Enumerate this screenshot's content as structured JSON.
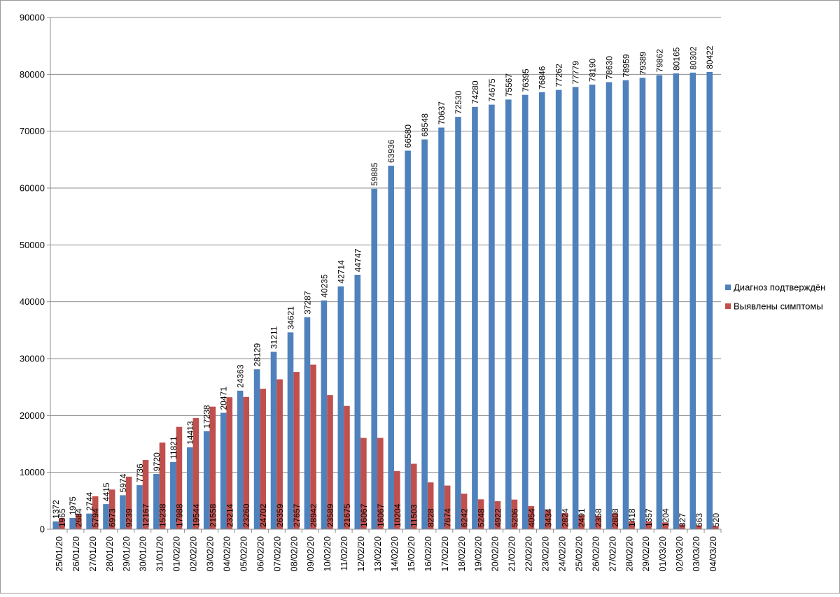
{
  "chart_data": {
    "type": "bar",
    "categories": [
      "25/01/20",
      "26/01/20",
      "27/01/20",
      "28/01/20",
      "29/01/20",
      "30/01/20",
      "31/01/20",
      "01/02/20",
      "02/02/20",
      "03/02/20",
      "04/02/20",
      "05/02/20",
      "06/02/20",
      "07/02/20",
      "08/02/20",
      "09/02/20",
      "10/02/20",
      "11/02/20",
      "12/02/20",
      "13/02/20",
      "14/02/20",
      "15/02/20",
      "16/02/20",
      "17/02/20",
      "18/02/20",
      "19/02/20",
      "20/02/20",
      "21/02/20",
      "22/02/20",
      "23/02/20",
      "24/02/20",
      "25/02/20",
      "26/02/20",
      "27/02/20",
      "28/02/20",
      "29/02/20",
      "01/03/20",
      "02/03/20",
      "03/03/20",
      "04/03/20"
    ],
    "series": [
      {
        "name": "Диагноз подтверждён",
        "color": "#4f81bd",
        "values": [
          1372,
          1975,
          2744,
          4415,
          5974,
          7736,
          9720,
          11821,
          14413,
          17238,
          20471,
          24363,
          28129,
          31211,
          34621,
          37287,
          40235,
          42714,
          44747,
          59885,
          63936,
          66580,
          68548,
          70637,
          72530,
          74280,
          74675,
          75567,
          76395,
          76846,
          77262,
          77779,
          78190,
          78630,
          78959,
          79389,
          79862,
          80165,
          80302,
          80422
        ]
      },
      {
        "name": "Выявлены симптомы",
        "color": "#c0504d",
        "values": [
          1965,
          2684,
          5794,
          6973,
          9239,
          12167,
          15238,
          17988,
          19544,
          21558,
          23214,
          23260,
          24702,
          26359,
          27657,
          28942,
          23589,
          21675,
          16067,
          16067,
          10204,
          11503,
          8228,
          7674,
          6242,
          5248,
          4922,
          5206,
          4054,
          3434,
          2824,
          2491,
          2358,
          2808,
          1418,
          1357,
          1204,
          827,
          663,
          520
        ]
      }
    ],
    "y_ticks": [
      "0",
      "10000",
      "20000",
      "30000",
      "40000",
      "50000",
      "60000",
      "70000",
      "80000",
      "90000"
    ],
    "ylim": [
      0,
      90000
    ],
    "grid": true,
    "legend_position": "right",
    "title": "",
    "xlabel": "",
    "ylabel": ""
  }
}
